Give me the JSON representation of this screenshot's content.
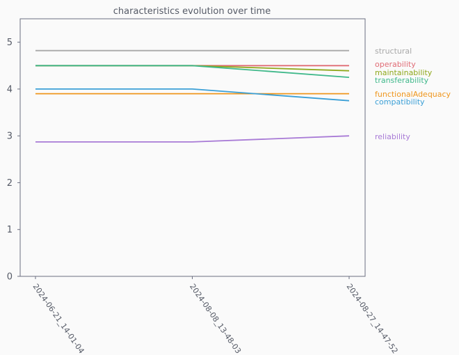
{
  "chart_data": {
    "type": "line",
    "title": "characteristics evolution over time",
    "xlabel": "",
    "ylabel": "",
    "x": [
      "2024-06-21_14-01-04",
      "2024-08-08_13-48-03",
      "2024-08-27_14-47-52"
    ],
    "ylim": [
      0,
      5.5
    ],
    "yticks": [
      "0",
      "1",
      "2",
      "3",
      "4",
      "5"
    ],
    "grid": false,
    "legend": "inline-right",
    "series": [
      {
        "name": "structural",
        "values": [
          4.82,
          4.82,
          4.82
        ],
        "color": "#a8a8a8"
      },
      {
        "name": "operability",
        "values": [
          4.5,
          4.5,
          4.5
        ],
        "color": "#e06c75"
      },
      {
        "name": "maintainability",
        "values": [
          4.5,
          4.5,
          4.39
        ],
        "color": "#8fa81c"
      },
      {
        "name": "transferability",
        "values": [
          4.5,
          4.5,
          4.25
        ],
        "color": "#3fb88a"
      },
      {
        "name": "functionalAdequacy",
        "values": [
          3.9,
          3.9,
          3.9
        ],
        "color": "#ef961c"
      },
      {
        "name": "compatibility",
        "values": [
          4.0,
          4.0,
          3.75
        ],
        "color": "#3a9fd6"
      },
      {
        "name": "reliability",
        "values": [
          2.87,
          2.87,
          3.0
        ],
        "color": "#a87ad6"
      }
    ]
  }
}
